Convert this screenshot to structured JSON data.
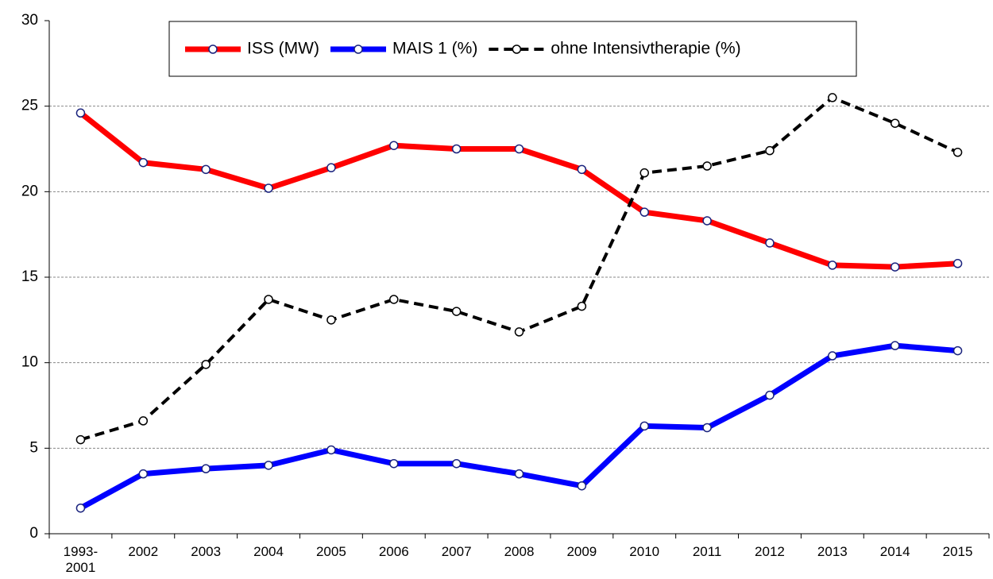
{
  "chart_data": {
    "type": "line",
    "categories": [
      "1993-2001",
      "2002",
      "2003",
      "2004",
      "2005",
      "2006",
      "2007",
      "2008",
      "2009",
      "2010",
      "2011",
      "2012",
      "2013",
      "2014",
      "2015"
    ],
    "series": [
      {
        "name": "ISS (MW)",
        "color": "#ff0000",
        "values": [
          24.6,
          21.7,
          21.3,
          20.2,
          21.4,
          22.7,
          22.5,
          22.5,
          21.3,
          18.8,
          18.3,
          17.0,
          15.7,
          15.6,
          15.8
        ]
      },
      {
        "name": "MAIS 1 (%)",
        "color": "#0000ff",
        "values": [
          1.5,
          3.5,
          3.8,
          4.0,
          4.9,
          4.1,
          4.1,
          3.5,
          2.8,
          6.3,
          6.2,
          8.1,
          10.4,
          11.0,
          10.7
        ]
      },
      {
        "name": "ohne Intensivtherapie (%)",
        "color": "#000000",
        "dashed": true,
        "values": [
          5.5,
          6.6,
          9.9,
          13.7,
          12.5,
          13.7,
          13.0,
          11.8,
          13.3,
          21.1,
          21.5,
          22.4,
          25.5,
          24.0,
          22.3
        ]
      }
    ],
    "ylim": [
      0,
      30
    ],
    "yticks": [
      0,
      5,
      10,
      15,
      20,
      25,
      30
    ],
    "grid": true,
    "legend": "top"
  }
}
